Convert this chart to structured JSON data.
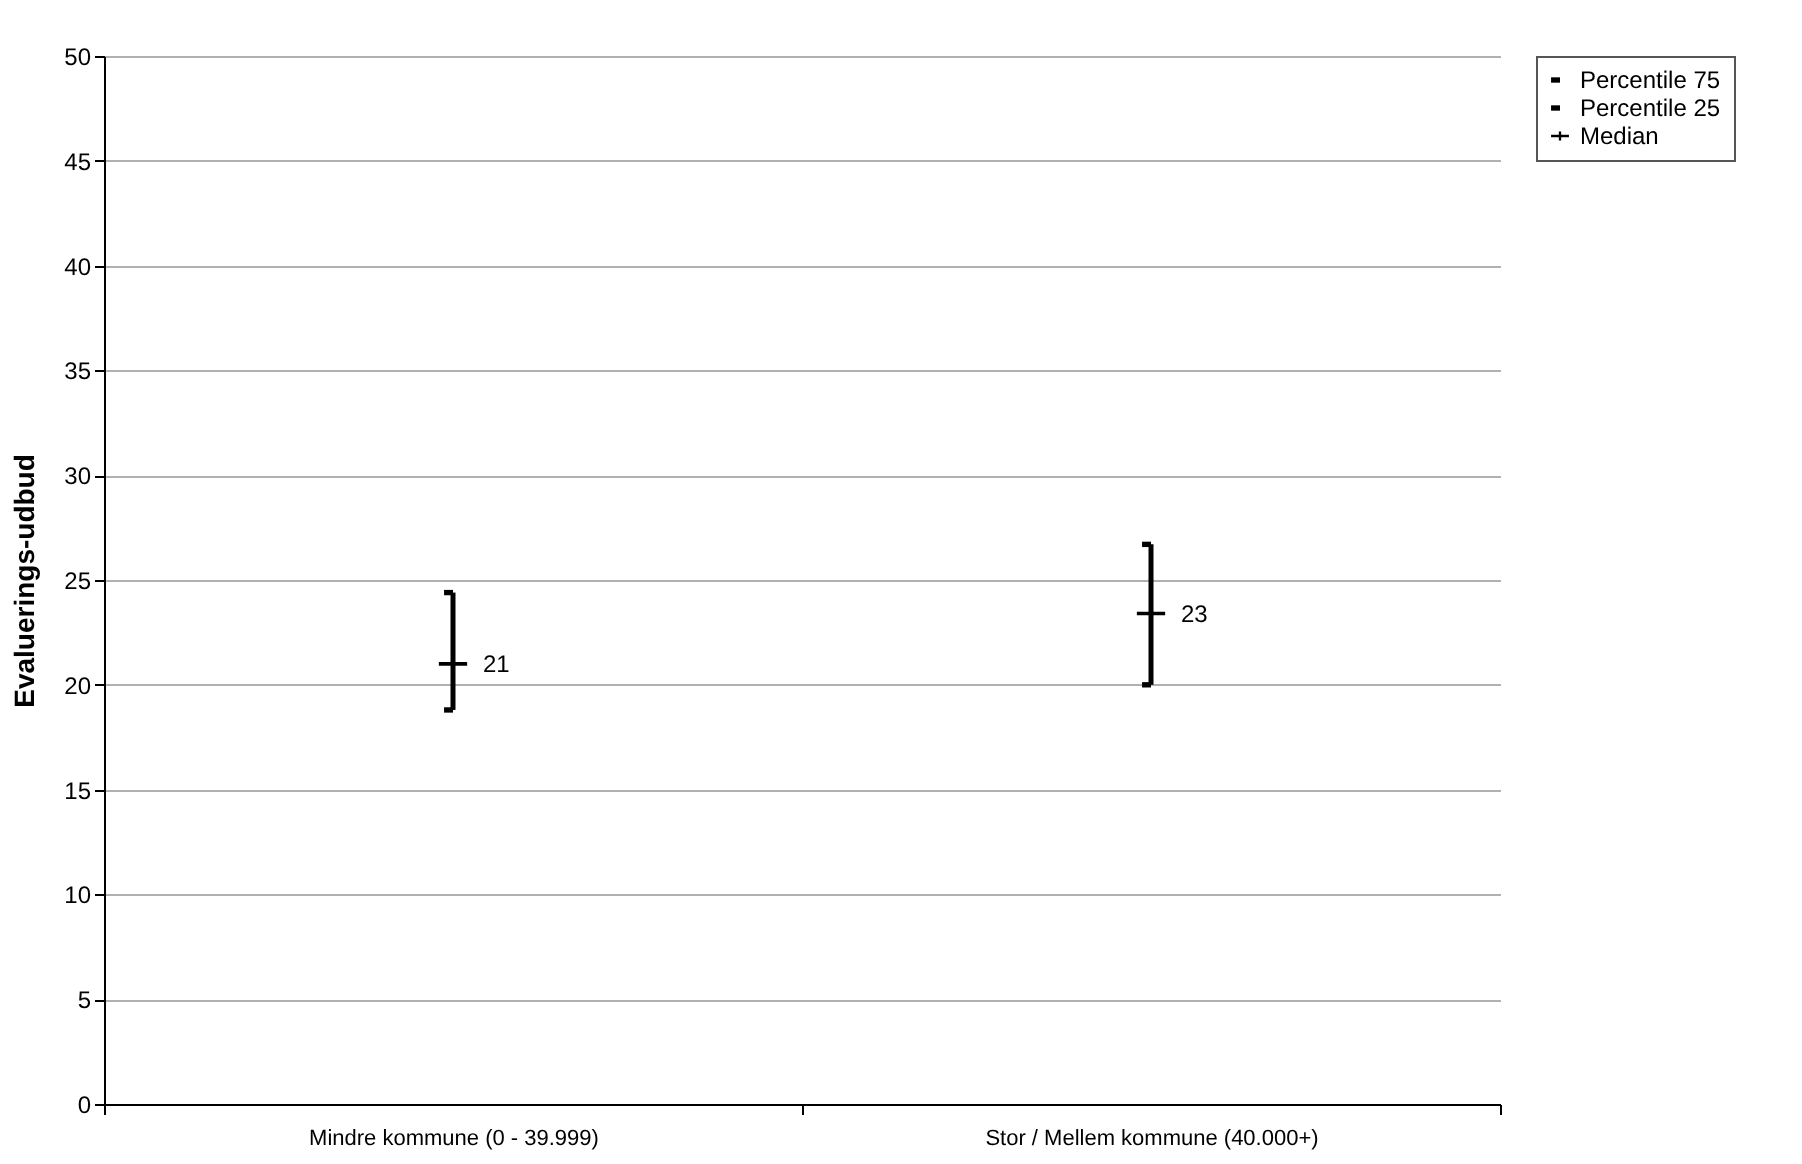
{
  "chart_data": {
    "type": "scatter",
    "ylabel": "Evaluerings-udbud",
    "categories": [
      "Mindre kommune (0 - 39.999)",
      "Stor / Mellem kommune (40.000+)"
    ],
    "series": [
      {
        "name": "Percentile 75",
        "color": "#000000",
        "values": [
          24.4,
          26.7
        ]
      },
      {
        "name": "Percentile 25",
        "color": "#000000",
        "values": [
          18.8,
          20.0
        ]
      },
      {
        "name": "Median",
        "color": "#000000",
        "values": [
          21.0,
          23.4
        ],
        "value_labels": [
          "21",
          "23"
        ],
        "errors": [
          [
            18.8,
            24.4
          ],
          [
            20.0,
            26.7
          ]
        ]
      }
    ],
    "ylim": [
      0,
      50
    ],
    "yticks": [
      0,
      5,
      10,
      15,
      20,
      25,
      30,
      35,
      40,
      45,
      50
    ],
    "grid": "y",
    "legend": "right"
  }
}
